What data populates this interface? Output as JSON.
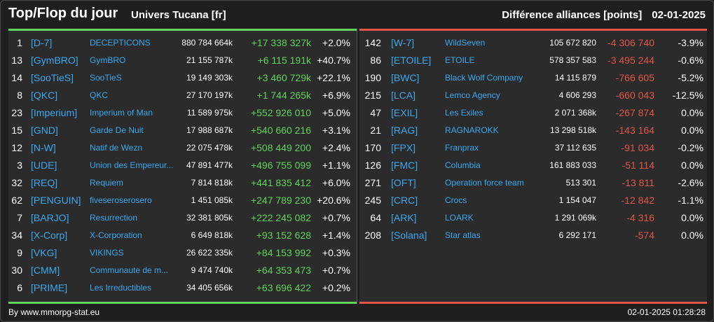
{
  "header": {
    "title": "Top/Flop du jour",
    "universe": "Univers Tucana [fr]",
    "metric": "Différence alliances [points]",
    "date": "02-01-2025"
  },
  "top": [
    {
      "rank": "1",
      "tag": "[D-7]",
      "name": "DECEPTICONS",
      "total": "880 784 664k",
      "diff": "+17 338 327k",
      "pct": "+2.0%"
    },
    {
      "rank": "13",
      "tag": "[GymBRO]",
      "name": "GymBRO",
      "total": "21 155 787k",
      "diff": "+6 115 191k",
      "pct": "+40.7%"
    },
    {
      "rank": "14",
      "tag": "[SooTieS]",
      "name": "SooTieS",
      "total": "19 149 303k",
      "diff": "+3 460 729k",
      "pct": "+22.1%"
    },
    {
      "rank": "8",
      "tag": "[QKC]",
      "name": "QKC",
      "total": "27 170 197k",
      "diff": "+1 744 265k",
      "pct": "+6.9%"
    },
    {
      "rank": "23",
      "tag": "[Imperium]",
      "name": "Imperium of Man",
      "total": "11 589 975k",
      "diff": "+552 926 010",
      "pct": "+5.0%"
    },
    {
      "rank": "15",
      "tag": "[GND]",
      "name": "Garde De Nuit",
      "total": "17 988 687k",
      "diff": "+540 660 216",
      "pct": "+3.1%"
    },
    {
      "rank": "12",
      "tag": "[N-W]",
      "name": "Natif de Wezn",
      "total": "22 075 478k",
      "diff": "+508 449 200",
      "pct": "+2.4%"
    },
    {
      "rank": "3",
      "tag": "[UDE]",
      "name": "Union des Empereur...",
      "total": "47 891 477k",
      "diff": "+496 755 099",
      "pct": "+1.1%"
    },
    {
      "rank": "32",
      "tag": "[REQ]",
      "name": "Requiem",
      "total": "7 814 818k",
      "diff": "+441 835 412",
      "pct": "+6.0%"
    },
    {
      "rank": "62",
      "tag": "[PENGUIN]",
      "name": "fiveseroserosero",
      "total": "1 451 085k",
      "diff": "+247 789 230",
      "pct": "+20.6%"
    },
    {
      "rank": "7",
      "tag": "[BARJO]",
      "name": "Resurrection",
      "total": "32 381 805k",
      "diff": "+222 245 082",
      "pct": "+0.7%"
    },
    {
      "rank": "34",
      "tag": "[X-Corp]",
      "name": "X-Corporation",
      "total": "6 649 818k",
      "diff": "+93 152 628",
      "pct": "+1.4%"
    },
    {
      "rank": "9",
      "tag": "[VKG]",
      "name": "VIKINGS",
      "total": "26 622 335k",
      "diff": "+84 153 992",
      "pct": "+0.3%"
    },
    {
      "rank": "30",
      "tag": "[CMM]",
      "name": "Communaute de m...",
      "total": "9 474 740k",
      "diff": "+64 353 473",
      "pct": "+0.7%"
    },
    {
      "rank": "6",
      "tag": "[PRIME]",
      "name": "Les Irreductibles",
      "total": "34 405 656k",
      "diff": "+63 696 422",
      "pct": "+0.2%"
    }
  ],
  "flop": [
    {
      "rank": "142",
      "tag": "[W-7]",
      "name": "WildSeven",
      "total": "105 672 820",
      "diff": "-4 306 740",
      "pct": "-3.9%"
    },
    {
      "rank": "86",
      "tag": "[ETOILE]",
      "name": "ETOILE",
      "total": "578 357 583",
      "diff": "-3 495 244",
      "pct": "-0.6%"
    },
    {
      "rank": "190",
      "tag": "[BWC]",
      "name": "Black Wolf Company",
      "total": "14 115 879",
      "diff": "-766 605",
      "pct": "-5.2%"
    },
    {
      "rank": "215",
      "tag": "[LCA]",
      "name": "Lemco Agency",
      "total": "4 606 293",
      "diff": "-660 043",
      "pct": "-12.5%"
    },
    {
      "rank": "47",
      "tag": "[EXIL]",
      "name": "Les Exiles",
      "total": "2 071 368k",
      "diff": "-267 874",
      "pct": "0.0%"
    },
    {
      "rank": "21",
      "tag": "[RAG]",
      "name": "RAGNAROKK",
      "total": "13 298 518k",
      "diff": "-143 164",
      "pct": "0.0%"
    },
    {
      "rank": "170",
      "tag": "[FPX]",
      "name": "Franprax",
      "total": "37 112 635",
      "diff": "-91 034",
      "pct": "-0.2%"
    },
    {
      "rank": "126",
      "tag": "[FMC]",
      "name": "Columbia",
      "total": "161 883 033",
      "diff": "-51 114",
      "pct": "0.0%"
    },
    {
      "rank": "271",
      "tag": "[OFT]",
      "name": "Operation force team",
      "total": "513 301",
      "diff": "-13 811",
      "pct": "-2.6%"
    },
    {
      "rank": "245",
      "tag": "[CRC]",
      "name": "Crocs",
      "total": "1 154 047",
      "diff": "-12 842",
      "pct": "-1.1%"
    },
    {
      "rank": "64",
      "tag": "[ARK]",
      "name": "LOARK",
      "total": "1 291 069k",
      "diff": "-4 316",
      "pct": "0.0%"
    },
    {
      "rank": "208",
      "tag": "[Solana]",
      "name": "Star atlas",
      "total": "6 292 171",
      "diff": "-574",
      "pct": "0.0%"
    }
  ],
  "footer": {
    "credit": "By www.mmorpg-stat.eu",
    "timestamp": "02-01-2025 01:28:28"
  },
  "colors": {
    "positive": "#5fd35a",
    "negative": "#e25548",
    "link": "#3aa8f0"
  }
}
